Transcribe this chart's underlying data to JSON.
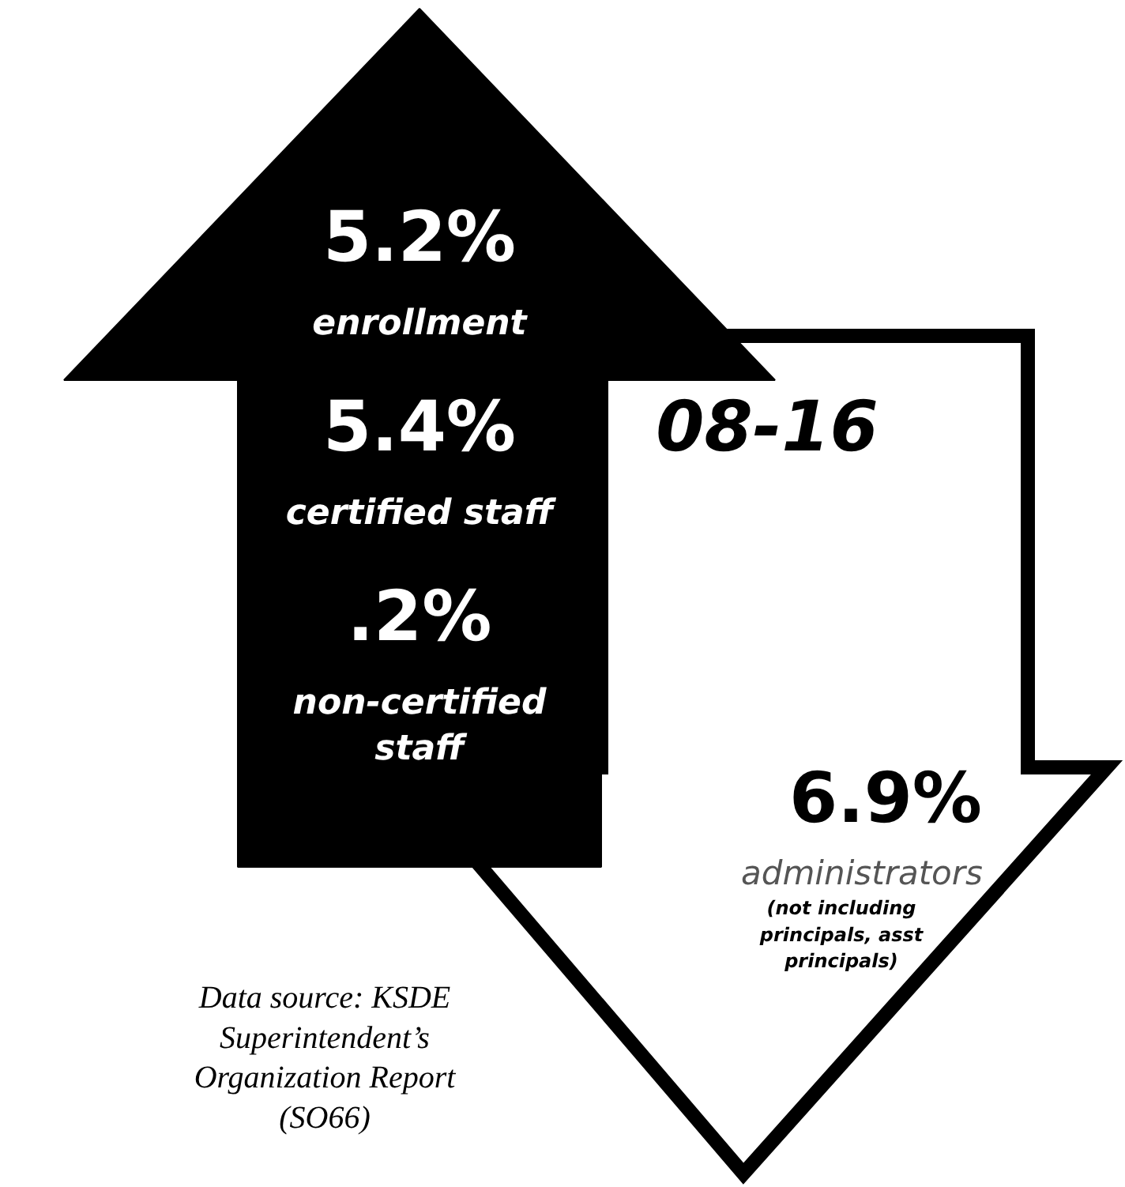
{
  "chart_data": {
    "type": "other",
    "title": "08-16",
    "categories": [
      "enrollment",
      "certified staff",
      "non-certified staff",
      "administrators"
    ],
    "values": [
      5.2,
      5.4,
      0.2,
      6.9
    ],
    "value_labels": [
      "5.2%",
      "5.4%",
      ".2%",
      "6.9%"
    ],
    "colors": [
      "#000000",
      "#000000",
      "#000000",
      "#ffffff"
    ],
    "annotations": [
      {
        "text": "(not including principals, asst principals)",
        "x": "administrators"
      },
      "Data source: KSDE Superintendent’s Organization Report (SO66)"
    ]
  }
}
